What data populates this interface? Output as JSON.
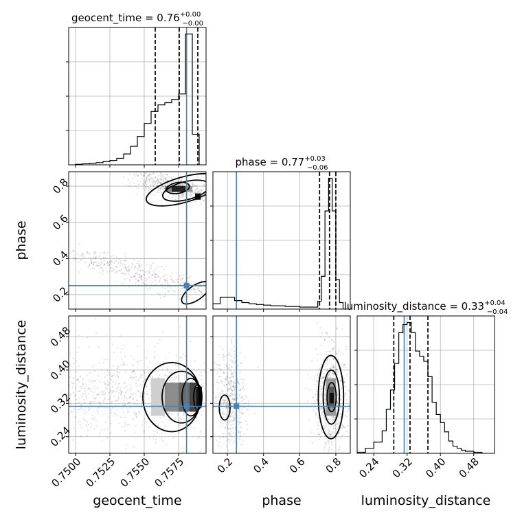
{
  "chart_data": {
    "type": "corner",
    "parameters": [
      {
        "name": "geocent_time",
        "label": "geocent_time",
        "range": [
          0.7495,
          0.7595
        ],
        "truth": 0.75808,
        "title": {
          "base": "geocent_time = 0.76",
          "sup": "+0.00",
          "sub": "−0.00"
        },
        "quantiles": [
          0.7558,
          0.75755,
          0.7589
        ],
        "ticks": [
          0.75,
          0.7525,
          0.755,
          0.7575
        ],
        "tick_labels": [
          "0.7500",
          "0.7525",
          "0.7550",
          "0.7575"
        ]
      },
      {
        "name": "phase",
        "label": "phase",
        "range": [
          0.12,
          0.88
        ],
        "truth": 0.25,
        "title": {
          "base": "phase = 0.77",
          "sup": "+0.03",
          "sub": "−0.06"
        },
        "quantiles": [
          0.71,
          0.765,
          0.8
        ],
        "ticks": [
          0.2,
          0.4,
          0.6,
          0.8
        ],
        "tick_labels": [
          "0.2",
          "0.4",
          "0.6",
          "0.8"
        ]
      },
      {
        "name": "luminosity_distance",
        "label": "luminosity_distance",
        "range": [
          0.2,
          0.53
        ],
        "truth": 0.313,
        "title": {
          "base": "luminosity_distance = 0.33",
          "sup": "+0.04",
          "sub": "−0.04"
        },
        "quantiles": [
          0.288,
          0.327,
          0.37
        ],
        "ticks": [
          0.24,
          0.32,
          0.4,
          0.48
        ],
        "tick_labels": [
          "0.24",
          "0.32",
          "0.40",
          "0.48"
        ]
      }
    ],
    "histograms": {
      "geocent_time": {
        "edges": [
          0.75,
          0.7505,
          0.751,
          0.7515,
          0.752,
          0.7525,
          0.753,
          0.7535,
          0.754,
          0.7545,
          0.755,
          0.7555,
          0.756,
          0.7565,
          0.757,
          0.7575,
          0.758,
          0.7585,
          0.759
        ],
        "counts": [
          0.5,
          1,
          1.5,
          2,
          3,
          4,
          6,
          10,
          17,
          26,
          38,
          49,
          55,
          57,
          60,
          65,
          120,
          28
        ]
      },
      "phase": {
        "edges": [
          0.12,
          0.16,
          0.2,
          0.24,
          0.28,
          0.32,
          0.36,
          0.4,
          0.44,
          0.48,
          0.52,
          0.56,
          0.6,
          0.64,
          0.68,
          0.7,
          0.72,
          0.74,
          0.76,
          0.78,
          0.8,
          0.82,
          0.84
        ],
        "counts": [
          8,
          18,
          18,
          13,
          10,
          8,
          7,
          6,
          5,
          5,
          4,
          4,
          3,
          3,
          3,
          12,
          50,
          150,
          200,
          150,
          45,
          10
        ]
      },
      "luminosity_distance": {
        "edges": [
          0.2,
          0.22,
          0.24,
          0.26,
          0.27,
          0.28,
          0.29,
          0.3,
          0.31,
          0.32,
          0.33,
          0.34,
          0.35,
          0.36,
          0.37,
          0.38,
          0.39,
          0.4,
          0.41,
          0.42,
          0.43,
          0.44,
          0.45,
          0.46,
          0.48,
          0.5
        ],
        "counts": [
          1,
          5,
          11,
          22,
          43,
          62,
          88,
          118,
          126,
          128,
          118,
          100,
          95,
          90,
          75,
          50,
          38,
          30,
          21,
          12,
          7,
          5,
          3,
          2,
          1
        ]
      }
    },
    "scatter_2d": {
      "phase_vs_geocent_time": {
        "clusters": [
          {
            "x": [
              0.7548,
              0.7592
            ],
            "y": [
              0.86,
              0.74
            ],
            "sx": 0.0008,
            "sy": 0.025,
            "n": 420
          },
          {
            "x": [
              0.75,
              0.759
            ],
            "y": [
              0.42,
              0.22
            ],
            "sx": 0.0009,
            "sy": 0.03,
            "n": 420
          }
        ],
        "contours": [
          {
            "cx": 0.75745,
            "cy": 0.79,
            "rx": 0.00085,
            "ry": 0.03,
            "rot": 10
          },
          {
            "cx": 0.75805,
            "cy": 0.775,
            "rx": 0.00175,
            "ry": 0.05,
            "rot": 14
          },
          {
            "cx": 0.75785,
            "cy": 0.78,
            "rx": 0.0028,
            "ry": 0.07,
            "rot": 16
          },
          {
            "cx": 0.75875,
            "cy": 0.21,
            "rx": 0.0012,
            "ry": 0.04,
            "rot": 35
          }
        ],
        "density_cells": [
          {
            "x0": 0.757,
            "x1": 0.758,
            "y0": 0.768,
            "y1": 0.802,
            "c": "#222"
          },
          {
            "x0": 0.7587,
            "x1": 0.7591,
            "y0": 0.725,
            "y1": 0.76,
            "c": "#111"
          },
          {
            "x0": 0.7565,
            "x1": 0.757,
            "y0": 0.768,
            "y1": 0.802,
            "c": "#888"
          },
          {
            "x0": 0.758,
            "x1": 0.7585,
            "y0": 0.768,
            "y1": 0.802,
            "c": "#999"
          }
        ]
      },
      "luminosity_distance_vs_geocent_time": {
        "clusters": [
          {
            "x": [
              0.7495,
              0.7595
            ],
            "y": [
              0.34,
              0.34
            ],
            "sx": 0.0025,
            "sy": 0.055,
            "n": 900
          }
        ],
        "contours": [
          {
            "cx": 0.7589,
            "cy": 0.335,
            "rx": 0.0003,
            "ry": 0.03,
            "rot": 0
          },
          {
            "cx": 0.7584,
            "cy": 0.335,
            "rx": 0.00065,
            "ry": 0.045,
            "rot": 0
          },
          {
            "cx": 0.7577,
            "cy": 0.335,
            "rx": 0.0014,
            "ry": 0.062,
            "rot": 0
          },
          {
            "cx": 0.757,
            "cy": 0.335,
            "rx": 0.0021,
            "ry": 0.083,
            "rot": 0
          }
        ],
        "density_cells": [
          {
            "x0": 0.7555,
            "x1": 0.7565,
            "y0": 0.29,
            "y1": 0.38,
            "c": "#cfcfcf"
          },
          {
            "x0": 0.7565,
            "x1": 0.7575,
            "y0": 0.3,
            "y1": 0.37,
            "c": "#8c8c8c"
          },
          {
            "x0": 0.7575,
            "x1": 0.7583,
            "y0": 0.3,
            "y1": 0.37,
            "c": "#6a6a6a"
          },
          {
            "x0": 0.7583,
            "x1": 0.7588,
            "y0": 0.3,
            "y1": 0.37,
            "c": "#444"
          },
          {
            "x0": 0.7588,
            "x1": 0.7592,
            "y0": 0.31,
            "y1": 0.36,
            "c": "#111"
          }
        ]
      },
      "luminosity_distance_vs_phase": {
        "clusters": [
          {
            "x": [
              0.22,
              0.22
            ],
            "y": [
              0.33,
              0.33
            ],
            "sx": 0.04,
            "sy": 0.06,
            "n": 450
          },
          {
            "x": [
              0.77,
              0.77
            ],
            "y": [
              0.335,
              0.335
            ],
            "sx": 0.045,
            "sy": 0.06,
            "n": 650
          }
        ],
        "contours": [
          {
            "cx": 0.185,
            "cy": 0.31,
            "rx": 0.03,
            "ry": 0.03,
            "rot": 0
          },
          {
            "cx": 0.777,
            "cy": 0.335,
            "rx": 0.025,
            "ry": 0.035,
            "rot": 0
          },
          {
            "cx": 0.775,
            "cy": 0.335,
            "rx": 0.045,
            "ry": 0.065,
            "rot": 0
          },
          {
            "cx": 0.773,
            "cy": 0.335,
            "rx": 0.07,
            "ry": 0.1,
            "rot": 0
          }
        ],
        "density_cells": [
          {
            "x0": 0.745,
            "x1": 0.8,
            "y0": 0.29,
            "y1": 0.38,
            "c": "#9a9a9a"
          },
          {
            "x0": 0.76,
            "x1": 0.79,
            "y0": 0.31,
            "y1": 0.36,
            "c": "#555"
          },
          {
            "x0": 0.765,
            "x1": 0.79,
            "y0": 0.32,
            "y1": 0.345,
            "c": "#111"
          }
        ]
      }
    },
    "colors": {
      "truth": "#4682b4",
      "hist": "#000000",
      "grid": "#b0b0b0",
      "points": "#000000"
    },
    "grid": true
  }
}
